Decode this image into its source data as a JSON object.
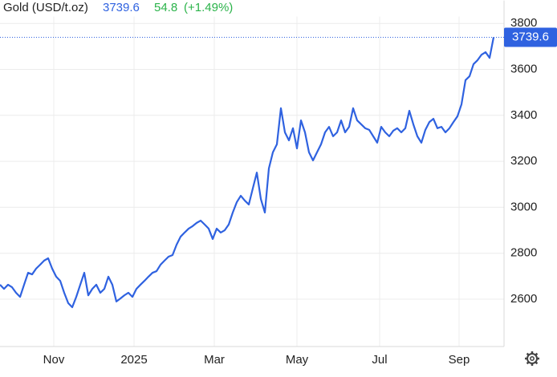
{
  "chart_data": {
    "type": "line",
    "title": "Gold (USD/t.oz)",
    "change": 54.8,
    "change_label": "(+1.49%)",
    "color": "#2f62e0",
    "change_color": "#2bb34a",
    "grid": true,
    "values": [
      2663,
      2645,
      2663,
      2652,
      2628,
      2610,
      2663,
      2715,
      2708,
      2733,
      2750,
      2768,
      2778,
      2733,
      2698,
      2680,
      2628,
      2583,
      2565,
      2610,
      2663,
      2715,
      2617,
      2645,
      2663,
      2628,
      2645,
      2698,
      2663,
      2590,
      2603,
      2617,
      2628,
      2610,
      2645,
      2663,
      2680,
      2698,
      2715,
      2722,
      2750,
      2768,
      2785,
      2792,
      2837,
      2872,
      2890,
      2907,
      2918,
      2932,
      2942,
      2925,
      2907,
      2862,
      2907,
      2890,
      2900,
      2925,
      2977,
      3022,
      3050,
      3029,
      3012,
      3082,
      3151,
      3036,
      2977,
      3169,
      3239,
      3274,
      3431,
      3326,
      3291,
      3344,
      3256,
      3378,
      3326,
      3239,
      3204,
      3239,
      3274,
      3326,
      3350,
      3309,
      3326,
      3378,
      3326,
      3350,
      3431,
      3378,
      3361,
      3344,
      3337,
      3309,
      3281,
      3350,
      3326,
      3309,
      3333,
      3344,
      3326,
      3344,
      3420,
      3361,
      3309,
      3281,
      3337,
      3371,
      3385,
      3344,
      3350,
      3326,
      3344,
      3371,
      3396,
      3448,
      3553,
      3570,
      3623,
      3640,
      3664,
      3675,
      3650,
      3739.6
    ],
    "xlim": [
      0,
      125
    ],
    "xticks": [
      {
        "value": 13.4,
        "label": "Nov"
      },
      {
        "value": 33.4,
        "label": "2025"
      },
      {
        "value": 53.4,
        "label": "Mar"
      },
      {
        "value": 74,
        "label": "May"
      },
      {
        "value": 94.6,
        "label": "Jul"
      },
      {
        "value": 114.4,
        "label": "Sep"
      }
    ],
    "ylim": [
      2400,
      3830
    ],
    "yticks": [
      2600,
      2800,
      3000,
      3200,
      3400,
      3600,
      3800
    ]
  }
}
